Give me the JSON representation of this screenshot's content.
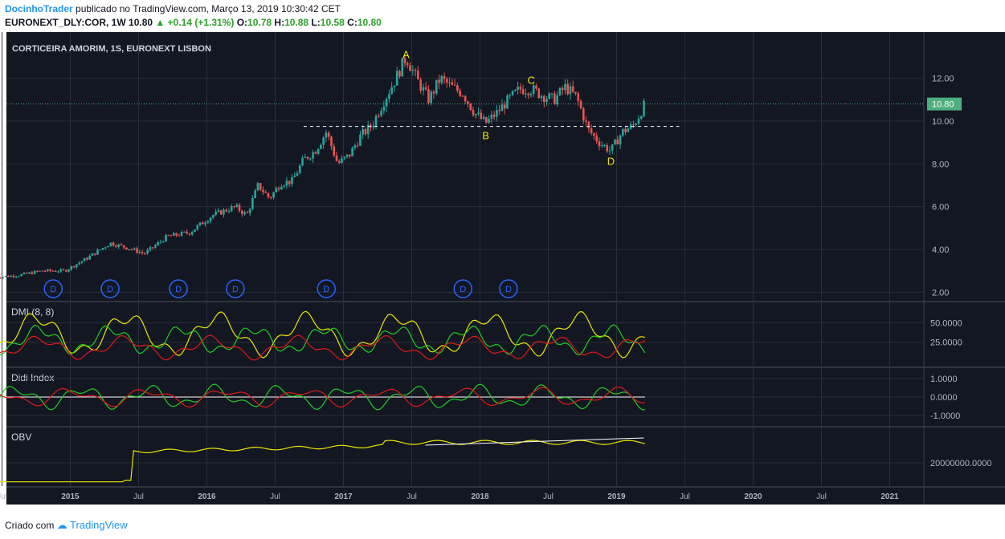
{
  "header": {
    "author": "DocinhoTrader",
    "published_text": "publicado no TradingView.com, Março 13, 2019 10:30:42 CET",
    "symbol": "EURONEXT_DLY:COR, 1W",
    "last": "10.80",
    "change": "▲ +0.14 (+1.31%)",
    "o_label": "O:",
    "o_value": "10.78",
    "h_label": "H:",
    "h_value": "10.88",
    "l_label": "L:",
    "l_value": "10.58",
    "c_label": "C:",
    "c_value": "10.80"
  },
  "footer": {
    "created_with": "Criado com",
    "brand": "TradingView"
  },
  "colors": {
    "background": "#131722",
    "grid": "#2a2e39",
    "up": "#26a69a",
    "down": "#ef5350",
    "yellow": "#e6e600",
    "green": "#22cc22",
    "red": "#e01818",
    "price_tag": "#4caf7d",
    "dividend": "#2962ff"
  },
  "chart_data": {
    "type": "candlestick",
    "title": "CORTICEIRA AMORIM, 1S, EURONEXT LISBON",
    "y_ticks": [
      "12.00",
      "10.00",
      "8.00",
      "6.00",
      "4.00",
      "2.00"
    ],
    "ylim": [
      1.9,
      13.6
    ],
    "last_price_label": "10.80",
    "x_ticks": [
      "Jul",
      "2015",
      "Jul",
      "2016",
      "Jul",
      "2017",
      "Jul",
      "2018",
      "Jul",
      "2019",
      "Jul",
      "2020",
      "Jul",
      "2021"
    ],
    "x_tick_dates": [
      "2014-07",
      "2015-01",
      "2015-07",
      "2016-01",
      "2016-07",
      "2017-01",
      "2017-07",
      "2018-01",
      "2018-07",
      "2019-01",
      "2019-07",
      "2020-01",
      "2020-07",
      "2021-01"
    ],
    "weekly_close_path": [
      [
        "2014-06",
        2.7
      ],
      [
        "2014-08",
        2.8
      ],
      [
        "2014-10",
        3.0
      ],
      [
        "2014-12",
        3.0
      ],
      [
        "2015-02",
        3.6
      ],
      [
        "2015-04",
        4.3
      ],
      [
        "2015-06",
        4.0
      ],
      [
        "2015-07",
        3.8
      ],
      [
        "2015-09",
        4.6
      ],
      [
        "2015-11",
        4.8
      ],
      [
        "2016-01",
        5.6
      ],
      [
        "2016-03",
        6.0
      ],
      [
        "2016-04",
        5.6
      ],
      [
        "2016-05",
        7.0
      ],
      [
        "2016-06",
        6.4
      ],
      [
        "2016-07",
        7.1
      ],
      [
        "2016-08",
        7.2
      ],
      [
        "2016-09",
        8.2
      ],
      [
        "2016-10",
        8.6
      ],
      [
        "2016-11",
        9.5
      ],
      [
        "2016-12",
        8.0
      ],
      [
        "2017-01",
        8.4
      ],
      [
        "2017-02",
        9.3
      ],
      [
        "2017-03",
        9.8
      ],
      [
        "2017-04",
        10.9
      ],
      [
        "2017-05",
        11.9
      ],
      [
        "2017-06",
        13.0
      ],
      [
        "2017-07",
        11.9
      ],
      [
        "2017-08",
        11.0
      ],
      [
        "2017-09",
        12.0
      ],
      [
        "2017-10",
        11.6
      ],
      [
        "2017-11",
        11.3
      ],
      [
        "2017-12",
        10.4
      ],
      [
        "2018-01",
        9.9
      ],
      [
        "2018-02",
        10.4
      ],
      [
        "2018-03",
        11.0
      ],
      [
        "2018-04",
        11.5
      ],
      [
        "2018-05",
        11.5
      ],
      [
        "2018-06",
        11.2
      ],
      [
        "2018-07",
        11.0
      ],
      [
        "2018-08",
        11.6
      ],
      [
        "2018-09",
        11.1
      ],
      [
        "2018-10",
        9.6
      ],
      [
        "2018-11",
        9.0
      ],
      [
        "2018-12",
        8.6
      ],
      [
        "2019-01",
        9.5
      ],
      [
        "2019-02",
        9.8
      ],
      [
        "2019-03",
        10.8
      ]
    ],
    "annotations": [
      {
        "label": "A",
        "date": "2017-06",
        "price": 13.1
      },
      {
        "label": "B",
        "date": "2018-01",
        "price": 9.3
      },
      {
        "label": "C",
        "date": "2018-05",
        "price": 11.9
      },
      {
        "label": "D",
        "date": "2018-12",
        "price": 8.1
      }
    ],
    "support_line": {
      "price": 9.75,
      "from": "2016-09",
      "to": "2019-06"
    },
    "dividends": {
      "label": "D",
      "dates": [
        "2014-11",
        "2015-04",
        "2015-10",
        "2016-03",
        "2016-11",
        "2017-11",
        "2018-03"
      ]
    },
    "indicators": [
      {
        "name": "DMI (8, 8)",
        "y_ticks": [
          "50.0000",
          "25.0000"
        ],
        "ylim": [
          0,
          70
        ]
      },
      {
        "name": "Didi Index",
        "y_ticks": [
          "1.0000",
          "0.0000",
          "-1.0000"
        ],
        "ylim": [
          -1.3,
          1.3
        ]
      },
      {
        "name": "OBV",
        "y_ticks": [
          "20000000.0000"
        ],
        "ylim": [
          0,
          1
        ]
      }
    ]
  }
}
